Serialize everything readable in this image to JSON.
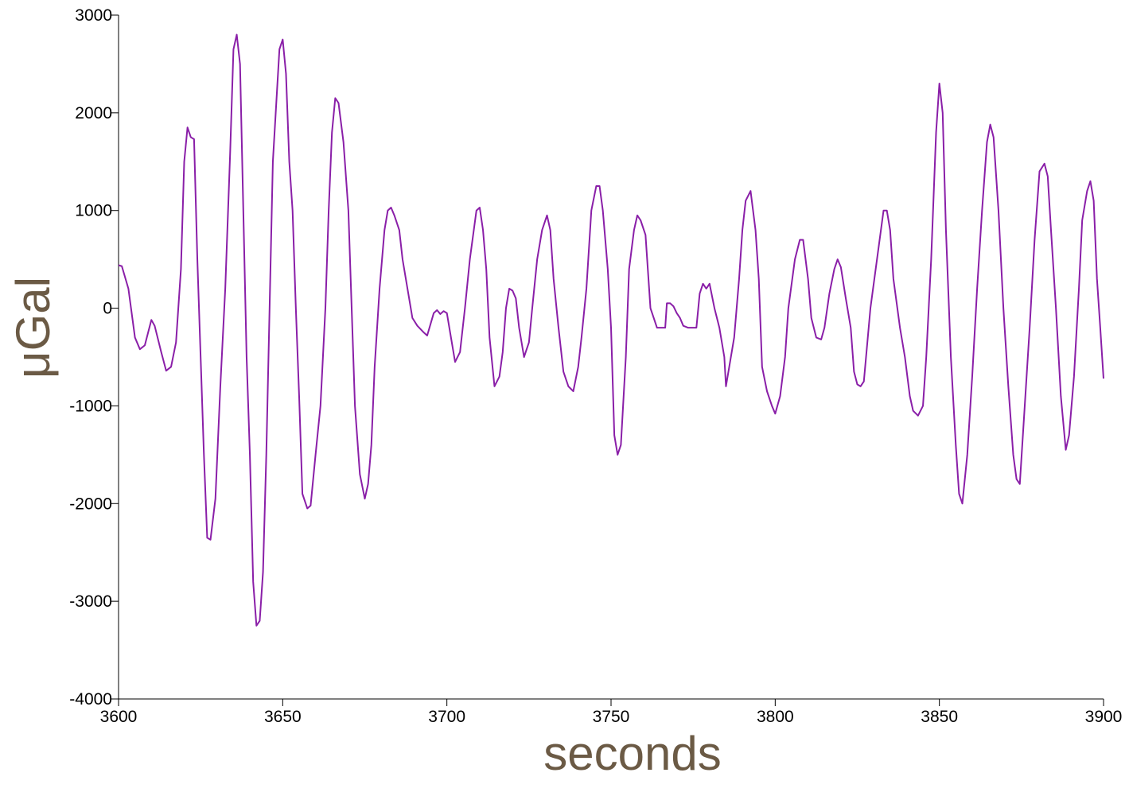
{
  "chart_data": {
    "type": "line",
    "x_label": "seconds",
    "y_label": "μGal",
    "xlim": [
      3600,
      3900
    ],
    "xticks": [
      3600,
      3650,
      3700,
      3750,
      3800,
      3850,
      3900
    ],
    "ylim": [
      -4000,
      3000
    ],
    "yticks": [
      -4000,
      -3000,
      -2000,
      -1000,
      0,
      1000,
      2000,
      3000
    ],
    "grid": false,
    "x": [
      3600,
      3601,
      3603,
      3605,
      3606.5,
      3608,
      3610,
      3611,
      3613,
      3614.5,
      3616,
      3617.5,
      3619,
      3620,
      3621,
      3622,
      3623,
      3624,
      3625,
      3626,
      3627,
      3628,
      3629.5,
      3631,
      3632.5,
      3634,
      3635,
      3636,
      3637,
      3638,
      3639,
      3640,
      3641,
      3642,
      3643,
      3644,
      3645,
      3646,
      3647,
      3649,
      3650,
      3651,
      3652,
      3653,
      3654,
      3655,
      3656,
      3657.5,
      3658.5,
      3660,
      3661.5,
      3663,
      3664,
      3665,
      3666,
      3667,
      3668.5,
      3670,
      3671,
      3672,
      3673.5,
      3675,
      3676,
      3677,
      3678,
      3679.5,
      3681,
      3682,
      3683,
      3684,
      3685.5,
      3686.5,
      3688,
      3689.5,
      3691,
      3693,
      3694,
      3696,
      3697,
      3698,
      3699,
      3700,
      3701,
      3702.5,
      3704,
      3705.5,
      3707,
      3709,
      3710,
      3711,
      3712,
      3713,
      3714.5,
      3716,
      3717,
      3718,
      3719,
      3720,
      3721,
      3722,
      3723.5,
      3725,
      3726,
      3727.5,
      3729,
      3730.5,
      3731.5,
      3732.5,
      3734,
      3735.5,
      3737,
      3738.5,
      3740,
      3741,
      3742.5,
      3744,
      3745.5,
      3746.5,
      3747.5,
      3749,
      3750,
      3751,
      3752,
      3753,
      3754.5,
      3755.5,
      3757,
      3758,
      3759,
      3760.5,
      3762,
      3763,
      3764,
      3765,
      3766.5,
      3767,
      3768,
      3769,
      3770,
      3771,
      3772,
      3773.5,
      3775,
      3776,
      3777,
      3778,
      3779,
      3780,
      3781.5,
      3783,
      3784.5,
      3785,
      3786,
      3787.5,
      3789,
      3790,
      3791,
      3792.5,
      3794,
      3795,
      3796,
      3797.5,
      3799,
      3800,
      3801.5,
      3803,
      3804,
      3806,
      3807.5,
      3808.5,
      3810,
      3811,
      3812.5,
      3814,
      3815,
      3816.5,
      3818,
      3819,
      3820,
      3821.5,
      3823,
      3824,
      3825,
      3826,
      3827,
      3829,
      3831,
      3833,
      3834,
      3835,
      3836,
      3838,
      3839.5,
      3841,
      3842,
      3843.5,
      3845,
      3846,
      3847.5,
      3849,
      3850,
      3851,
      3852,
      3853.5,
      3855,
      3856,
      3857,
      3858.5,
      3860,
      3861.5,
      3863,
      3864.5,
      3865.5,
      3866.5,
      3868,
      3869.5,
      3871,
      3872.5,
      3873.5,
      3874.5,
      3876,
      3877.5,
      3879,
      3880.5,
      3882,
      3883,
      3884,
      3885.5,
      3887,
      3888.5,
      3889.5,
      3891,
      3892.5,
      3893.5,
      3895,
      3896,
      3897,
      3898,
      3899,
      3900
    ],
    "series": [
      {
        "color": "#8a1fa8",
        "values": [
          440,
          430,
          200,
          -300,
          -420,
          -380,
          -120,
          -180,
          -450,
          -640,
          -600,
          -350,
          400,
          1500,
          1850,
          1750,
          1730,
          500,
          -500,
          -1500,
          -2350,
          -2370,
          -1950,
          -800,
          200,
          1600,
          2650,
          2800,
          2500,
          1000,
          -500,
          -1500,
          -2800,
          -3250,
          -3200,
          -2700,
          -1500,
          0,
          1500,
          2650,
          2750,
          2400,
          1500,
          1000,
          0,
          -900,
          -1900,
          -2050,
          -2020,
          -1500,
          -1000,
          0,
          1000,
          1800,
          2150,
          2100,
          1700,
          1000,
          0,
          -1000,
          -1700,
          -1950,
          -1800,
          -1400,
          -600,
          200,
          800,
          1000,
          1030,
          950,
          800,
          500,
          200,
          -100,
          -180,
          -250,
          -280,
          -50,
          -20,
          -60,
          -30,
          -50,
          -250,
          -550,
          -450,
          0,
          500,
          1000,
          1030,
          800,
          400,
          -300,
          -800,
          -700,
          -450,
          0,
          200,
          180,
          100,
          -200,
          -500,
          -350,
          0,
          500,
          800,
          950,
          800,
          300,
          -200,
          -650,
          -800,
          -850,
          -600,
          -300,
          200,
          1000,
          1250,
          1250,
          1000,
          400,
          -200,
          -1300,
          -1500,
          -1400,
          -500,
          400,
          800,
          950,
          900,
          750,
          0,
          -100,
          -200,
          -200,
          -200,
          50,
          50,
          20,
          -50,
          -100,
          -180,
          -200,
          -200,
          -200,
          150,
          250,
          200,
          250,
          0,
          -200,
          -500,
          -800,
          -600,
          -300,
          300,
          800,
          1100,
          1200,
          800,
          300,
          -600,
          -850,
          -1000,
          -1080,
          -900,
          -500,
          0,
          500,
          700,
          700,
          300,
          -100,
          -300,
          -320,
          -200,
          150,
          400,
          500,
          420,
          100,
          -200,
          -650,
          -780,
          -800,
          -750,
          0,
          500,
          1000,
          1000,
          800,
          300,
          -200,
          -500,
          -900,
          -1050,
          -1100,
          -1000,
          -500,
          500,
          1800,
          2300,
          2000,
          800,
          -500,
          -1400,
          -1900,
          -2000,
          -1500,
          -700,
          200,
          1000,
          1700,
          1880,
          1750,
          1000,
          0,
          -800,
          -1500,
          -1750,
          -1800,
          -1000,
          -200,
          700,
          1400,
          1480,
          1350,
          800,
          0,
          -900,
          -1450,
          -1300,
          -700,
          200,
          900,
          1200,
          1300,
          1100,
          300,
          -200,
          -720
        ]
      }
    ]
  }
}
